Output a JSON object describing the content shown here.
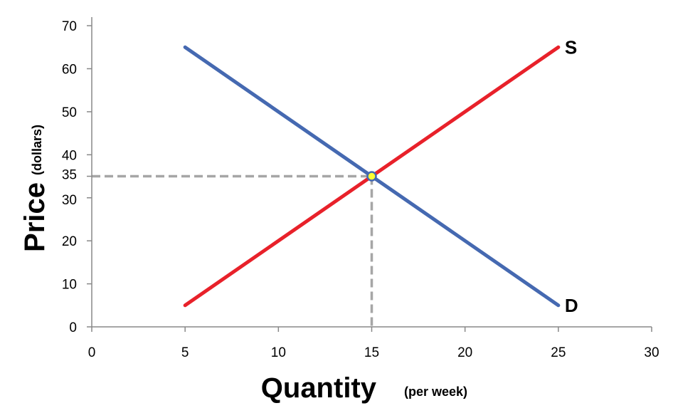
{
  "chart_data": {
    "type": "line",
    "title": "",
    "xlabel": "Quantity",
    "xlabel_unit": "(per week)",
    "ylabel": "Price",
    "ylabel_unit": "(dollars)",
    "xlim": [
      0,
      30
    ],
    "ylim": [
      0,
      72
    ],
    "x_ticks": [
      0,
      5,
      10,
      15,
      20,
      25,
      30
    ],
    "y_ticks": [
      0,
      10,
      20,
      30,
      35,
      40,
      50,
      60,
      70
    ],
    "grid": false,
    "series": [
      {
        "name": "S",
        "color": "#e8212a",
        "x": [
          5,
          25
        ],
        "y": [
          5,
          65
        ]
      },
      {
        "name": "D",
        "color": "#4569b1",
        "x": [
          5,
          25
        ],
        "y": [
          65,
          5
        ]
      }
    ],
    "equilibrium": {
      "x": 15,
      "y": 35,
      "marker_fill": "#ffff33",
      "marker_stroke": "#4569b1",
      "guide_color": "#a6a6a6"
    }
  }
}
